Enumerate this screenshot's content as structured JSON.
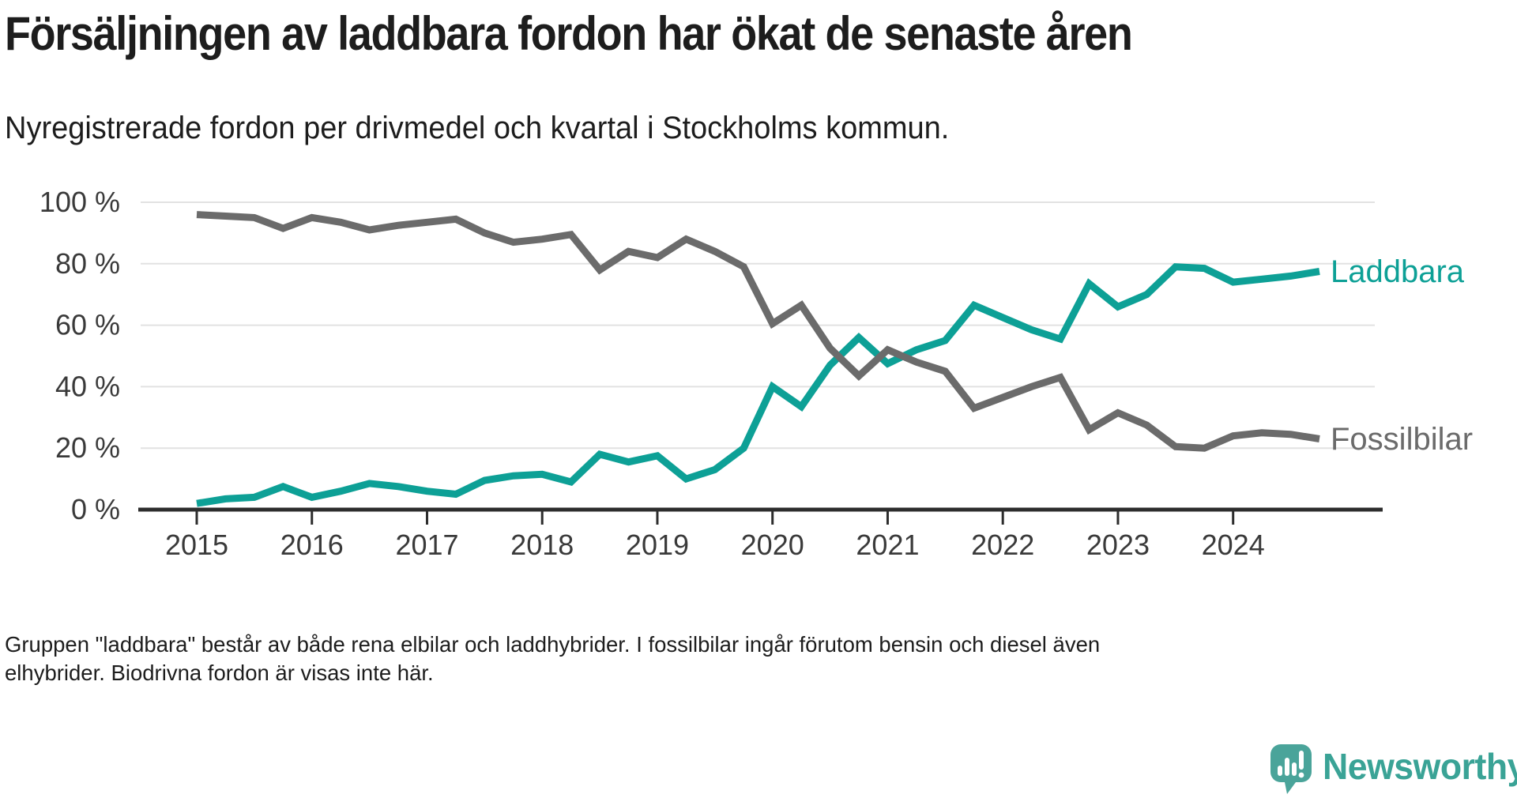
{
  "header": {
    "title": "Försäljningen av laddbara fordon har ökat de senaste åren",
    "subtitle": "Nyregistrerade fordon per drivmedel och kvartal i Stockholms kommun."
  },
  "chart_data": {
    "type": "line",
    "title": "Försäljningen av laddbara fordon har ökat de senaste åren",
    "subtitle": "Nyregistrerade fordon per drivmedel och kvartal i Stockholms kommun.",
    "x_unit": "quarter",
    "x_tick_labels": [
      "2015",
      "2016",
      "2017",
      "2018",
      "2019",
      "2020",
      "2021",
      "2022",
      "2023",
      "2024"
    ],
    "y_tick_labels": [
      "0 %",
      "20 %",
      "40 %",
      "60 %",
      "80 %",
      "100 %"
    ],
    "y_ticks": [
      0,
      20,
      40,
      60,
      80,
      100
    ],
    "ylim": [
      0,
      100
    ],
    "grid": true,
    "legend_position": "line-end-labels",
    "quarters": [
      "2015-K1",
      "2015-K2",
      "2015-K3",
      "2015-K4",
      "2016-K1",
      "2016-K2",
      "2016-K3",
      "2016-K4",
      "2017-K1",
      "2017-K2",
      "2017-K3",
      "2017-K4",
      "2018-K1",
      "2018-K2",
      "2018-K3",
      "2018-K4",
      "2019-K1",
      "2019-K2",
      "2019-K3",
      "2019-K4",
      "2020-K1",
      "2020-K2",
      "2020-K3",
      "2020-K4",
      "2021-K1",
      "2021-K2",
      "2021-K3",
      "2021-K4",
      "2022-K1",
      "2022-K2",
      "2022-K3",
      "2022-K4",
      "2023-K1",
      "2023-K2",
      "2023-K3",
      "2023-K4",
      "2024-K1",
      "2024-K2",
      "2024-K3",
      "2024-K4"
    ],
    "series": [
      {
        "name": "Laddbara",
        "color": "#0da096",
        "values": [
          2,
          3.5,
          4,
          7.5,
          4,
          6,
          8.5,
          7.5,
          6,
          5,
          9.5,
          11,
          11.5,
          9,
          18,
          15.5,
          17.5,
          10,
          13,
          20,
          40,
          33.5,
          47,
          56,
          47.5,
          52,
          55,
          66.5,
          62.5,
          58.5,
          55.5,
          73.5,
          66,
          70,
          79,
          78.5,
          74,
          75,
          76,
          77.5
        ]
      },
      {
        "name": "Fossilbilar",
        "color": "#6b6b6b",
        "values": [
          96,
          95.5,
          95,
          91.5,
          95,
          93.5,
          91,
          92.5,
          93.5,
          94.5,
          90,
          87,
          88,
          89.5,
          78,
          84,
          82,
          88,
          84,
          79,
          60.5,
          66.5,
          52.5,
          43.5,
          52,
          48,
          45,
          33,
          36.5,
          40,
          43,
          26,
          31.5,
          27.5,
          20.5,
          20,
          24,
          25,
          24.5,
          23
        ]
      }
    ],
    "style": {
      "grid_color": "#e2e2e2",
      "axis_color": "#2d2d2d",
      "tick_label_color": "#3a3a3a"
    }
  },
  "footnote": {
    "text": "Gruppen \"laddbara\" består av både rena elbilar och laddhybrider. I fossilbilar ingår förutom bensin och diesel även elhybrider. Biodrivna fordon är visas inte här."
  },
  "brand": {
    "name": "Newsworthy",
    "accent_color": "#3aa396",
    "icon_color": "#4aa49a"
  }
}
